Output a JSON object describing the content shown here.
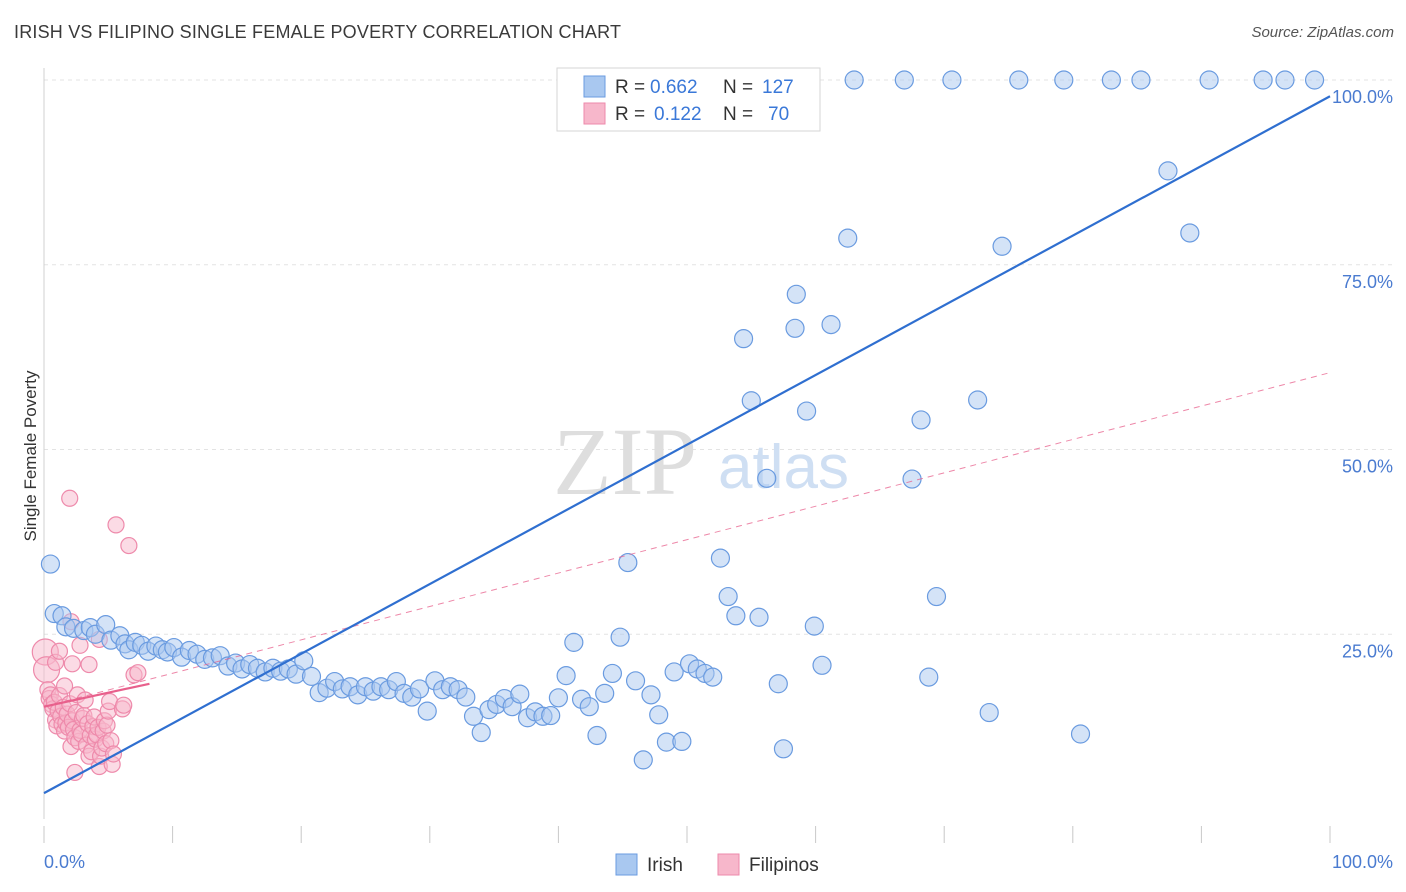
{
  "header": {
    "title": "IRISH VS FILIPINO SINGLE FEMALE POVERTY CORRELATION CHART",
    "source": "Source: ZipAtlas.com"
  },
  "watermark": {
    "zip": "ZIP",
    "atlas": "atlas"
  },
  "chart_data": {
    "type": "scatter",
    "ylabel": "Single Female Poverty",
    "xlim": [
      0,
      100
    ],
    "ylim": [
      0,
      100
    ],
    "x_tick_labels": [
      "0.0%",
      "100.0%"
    ],
    "y_ticks": [
      {
        "value": 25,
        "label": "25.0%"
      },
      {
        "value": 50,
        "label": "50.0%"
      },
      {
        "value": 75,
        "label": "75.0%"
      },
      {
        "value": 100,
        "label": "100.0%"
      }
    ],
    "grid": true,
    "legend_position": "bottom",
    "stats_box_position": "top-center",
    "series": [
      {
        "name": "Irish",
        "color": "#a9c8f0",
        "edge_color": "#6a9be0",
        "trend_color": "#2f6fd0",
        "stats": {
          "r_label": "R =",
          "r_value": "0.662",
          "n_label": "N =",
          "n_value": "127"
        },
        "trend": {
          "x": [
            0,
            100
          ],
          "y": [
            3.5,
            97.8
          ]
        },
        "points": [
          [
            0.5,
            34.5
          ],
          [
            0.8,
            27.8
          ],
          [
            1.4,
            27.5
          ],
          [
            1.7,
            26.0
          ],
          [
            2.3,
            25.8
          ],
          [
            3.1,
            25.5
          ],
          [
            3.6,
            25.9
          ],
          [
            4.0,
            25.0
          ],
          [
            4.8,
            26.3
          ],
          [
            5.2,
            24.2
          ],
          [
            5.9,
            24.8
          ],
          [
            6.3,
            23.7
          ],
          [
            6.6,
            22.9
          ],
          [
            7.1,
            23.9
          ],
          [
            7.6,
            23.5
          ],
          [
            8.1,
            22.7
          ],
          [
            8.7,
            23.4
          ],
          [
            9.2,
            22.9
          ],
          [
            9.6,
            22.6
          ],
          [
            10.1,
            23.2
          ],
          [
            10.7,
            21.9
          ],
          [
            11.3,
            22.8
          ],
          [
            11.9,
            22.3
          ],
          [
            12.5,
            21.6
          ],
          [
            13.1,
            21.8
          ],
          [
            13.7,
            22.1
          ],
          [
            14.3,
            20.7
          ],
          [
            14.9,
            21.1
          ],
          [
            15.4,
            20.3
          ],
          [
            16.0,
            20.9
          ],
          [
            16.6,
            20.4
          ],
          [
            17.2,
            19.9
          ],
          [
            17.8,
            20.4
          ],
          [
            18.4,
            20.0
          ],
          [
            19.0,
            20.3
          ],
          [
            19.6,
            19.6
          ],
          [
            20.2,
            21.4
          ],
          [
            20.8,
            19.3
          ],
          [
            21.4,
            17.1
          ],
          [
            22.0,
            17.7
          ],
          [
            22.6,
            18.6
          ],
          [
            23.2,
            17.6
          ],
          [
            23.8,
            17.9
          ],
          [
            24.4,
            16.8
          ],
          [
            25.0,
            17.9
          ],
          [
            25.6,
            17.3
          ],
          [
            26.2,
            17.9
          ],
          [
            26.8,
            17.5
          ],
          [
            27.4,
            18.6
          ],
          [
            28.0,
            17.0
          ],
          [
            28.6,
            16.5
          ],
          [
            29.2,
            17.6
          ],
          [
            29.8,
            14.6
          ],
          [
            30.4,
            18.7
          ],
          [
            31.0,
            17.5
          ],
          [
            31.6,
            17.9
          ],
          [
            32.2,
            17.5
          ],
          [
            32.8,
            16.5
          ],
          [
            33.4,
            13.9
          ],
          [
            34.0,
            11.7
          ],
          [
            34.6,
            14.8
          ],
          [
            35.2,
            15.5
          ],
          [
            35.8,
            16.3
          ],
          [
            36.4,
            15.2
          ],
          [
            37.0,
            16.9
          ],
          [
            37.6,
            13.7
          ],
          [
            38.2,
            14.5
          ],
          [
            38.8,
            13.9
          ],
          [
            39.4,
            14.0
          ],
          [
            40.0,
            16.4
          ],
          [
            40.6,
            19.4
          ],
          [
            41.2,
            23.9
          ],
          [
            41.8,
            16.2
          ],
          [
            42.4,
            15.2
          ],
          [
            43.0,
            11.3
          ],
          [
            43.6,
            17.0
          ],
          [
            44.2,
            19.7
          ],
          [
            44.8,
            24.6
          ],
          [
            45.4,
            34.7
          ],
          [
            46.0,
            18.7
          ],
          [
            46.6,
            8.0
          ],
          [
            47.2,
            16.8
          ],
          [
            47.8,
            14.1
          ],
          [
            48.4,
            10.4
          ],
          [
            49.0,
            19.9
          ],
          [
            49.6,
            10.5
          ],
          [
            50.2,
            21.0
          ],
          [
            50.8,
            20.3
          ],
          [
            51.4,
            19.7
          ],
          [
            52.0,
            19.2
          ],
          [
            52.6,
            35.3
          ],
          [
            53.2,
            30.1
          ],
          [
            53.8,
            27.5
          ],
          [
            54.4,
            65.0
          ],
          [
            55.0,
            56.6
          ],
          [
            55.6,
            27.3
          ],
          [
            56.2,
            46.1
          ],
          [
            57.1,
            18.3
          ],
          [
            57.5,
            9.5
          ],
          [
            58.4,
            66.4
          ],
          [
            59.3,
            55.2
          ],
          [
            59.9,
            26.1
          ],
          [
            60.5,
            20.8
          ],
          [
            61.2,
            66.9
          ],
          [
            62.5,
            78.6
          ],
          [
            63.0,
            100.0
          ],
          [
            66.9,
            100.0
          ],
          [
            67.5,
            46.0
          ],
          [
            68.2,
            54.0
          ],
          [
            68.8,
            19.2
          ],
          [
            69.4,
            30.1
          ],
          [
            70.6,
            100.0
          ],
          [
            72.6,
            56.7
          ],
          [
            73.5,
            14.4
          ],
          [
            74.5,
            77.5
          ],
          [
            75.8,
            100.0
          ],
          [
            79.3,
            100.0
          ],
          [
            80.6,
            11.5
          ],
          [
            83.0,
            100.0
          ],
          [
            85.3,
            100.0
          ],
          [
            87.4,
            87.7
          ],
          [
            89.1,
            79.3
          ],
          [
            90.6,
            100.0
          ],
          [
            94.8,
            100.0
          ],
          [
            96.5,
            100.0
          ],
          [
            98.8,
            100.0
          ],
          [
            58.5,
            71.0
          ]
        ]
      },
      {
        "name": "Filipinos",
        "color": "#f7b7cb",
        "edge_color": "#ee8aab",
        "trend_color": "#e8608c",
        "stats": {
          "r_label": "R =",
          "r_value": "0.122",
          "n_label": "N =",
          "n_value": "70"
        },
        "trend": {
          "x": [
            0,
            8.2
          ],
          "y": [
            15.2,
            18.3
          ]
        },
        "trend_extended": {
          "x": [
            0,
            100
          ],
          "y": [
            15.2,
            60.4
          ]
        },
        "points": [
          [
            0.1,
            22.6
          ],
          [
            0.2,
            20.2
          ],
          [
            0.3,
            17.5
          ],
          [
            0.4,
            16.3
          ],
          [
            0.5,
            16.8
          ],
          [
            0.6,
            15.5
          ],
          [
            0.7,
            14.9
          ],
          [
            0.8,
            15.8
          ],
          [
            0.9,
            13.4
          ],
          [
            1.0,
            12.6
          ],
          [
            1.1,
            14.6
          ],
          [
            1.2,
            16.7
          ],
          [
            1.3,
            13.9
          ],
          [
            1.4,
            12.8
          ],
          [
            1.5,
            15.1
          ],
          [
            1.6,
            11.9
          ],
          [
            1.7,
            13.0
          ],
          [
            1.8,
            14.2
          ],
          [
            1.9,
            12.4
          ],
          [
            2.0,
            15.6
          ],
          [
            2.1,
            9.8
          ],
          [
            2.2,
            13.3
          ],
          [
            2.3,
            12.1
          ],
          [
            2.4,
            11.0
          ],
          [
            2.5,
            14.4
          ],
          [
            2.6,
            16.8
          ],
          [
            2.7,
            10.5
          ],
          [
            2.8,
            12.0
          ],
          [
            2.9,
            11.5
          ],
          [
            3.0,
            13.6
          ],
          [
            3.1,
            14.0
          ],
          [
            3.2,
            16.1
          ],
          [
            3.3,
            10.0
          ],
          [
            3.4,
            12.9
          ],
          [
            3.5,
            8.5
          ],
          [
            3.6,
            11.3
          ],
          [
            3.7,
            9.1
          ],
          [
            3.8,
            12.5
          ],
          [
            3.9,
            13.8
          ],
          [
            4.0,
            10.8
          ],
          [
            4.1,
            11.4
          ],
          [
            4.2,
            12.4
          ],
          [
            4.3,
            7.1
          ],
          [
            4.4,
            8.5
          ],
          [
            4.5,
            9.6
          ],
          [
            4.6,
            11.9
          ],
          [
            4.7,
            13.3
          ],
          [
            4.8,
            10.2
          ],
          [
            4.9,
            12.7
          ],
          [
            5.0,
            14.6
          ],
          [
            5.1,
            15.9
          ],
          [
            5.2,
            10.6
          ],
          [
            5.3,
            7.4
          ],
          [
            5.4,
            8.8
          ],
          [
            6.1,
            14.9
          ],
          [
            6.2,
            15.4
          ],
          [
            7.0,
            19.5
          ],
          [
            7.3,
            19.8
          ],
          [
            2.0,
            43.4
          ],
          [
            5.6,
            39.8
          ],
          [
            6.6,
            37.0
          ],
          [
            2.1,
            26.7
          ],
          [
            2.8,
            23.5
          ],
          [
            3.5,
            20.9
          ],
          [
            4.3,
            24.3
          ],
          [
            2.4,
            6.3
          ],
          [
            1.6,
            18.0
          ],
          [
            0.9,
            21.2
          ],
          [
            1.2,
            22.7
          ],
          [
            2.2,
            21.0
          ]
        ]
      }
    ]
  }
}
